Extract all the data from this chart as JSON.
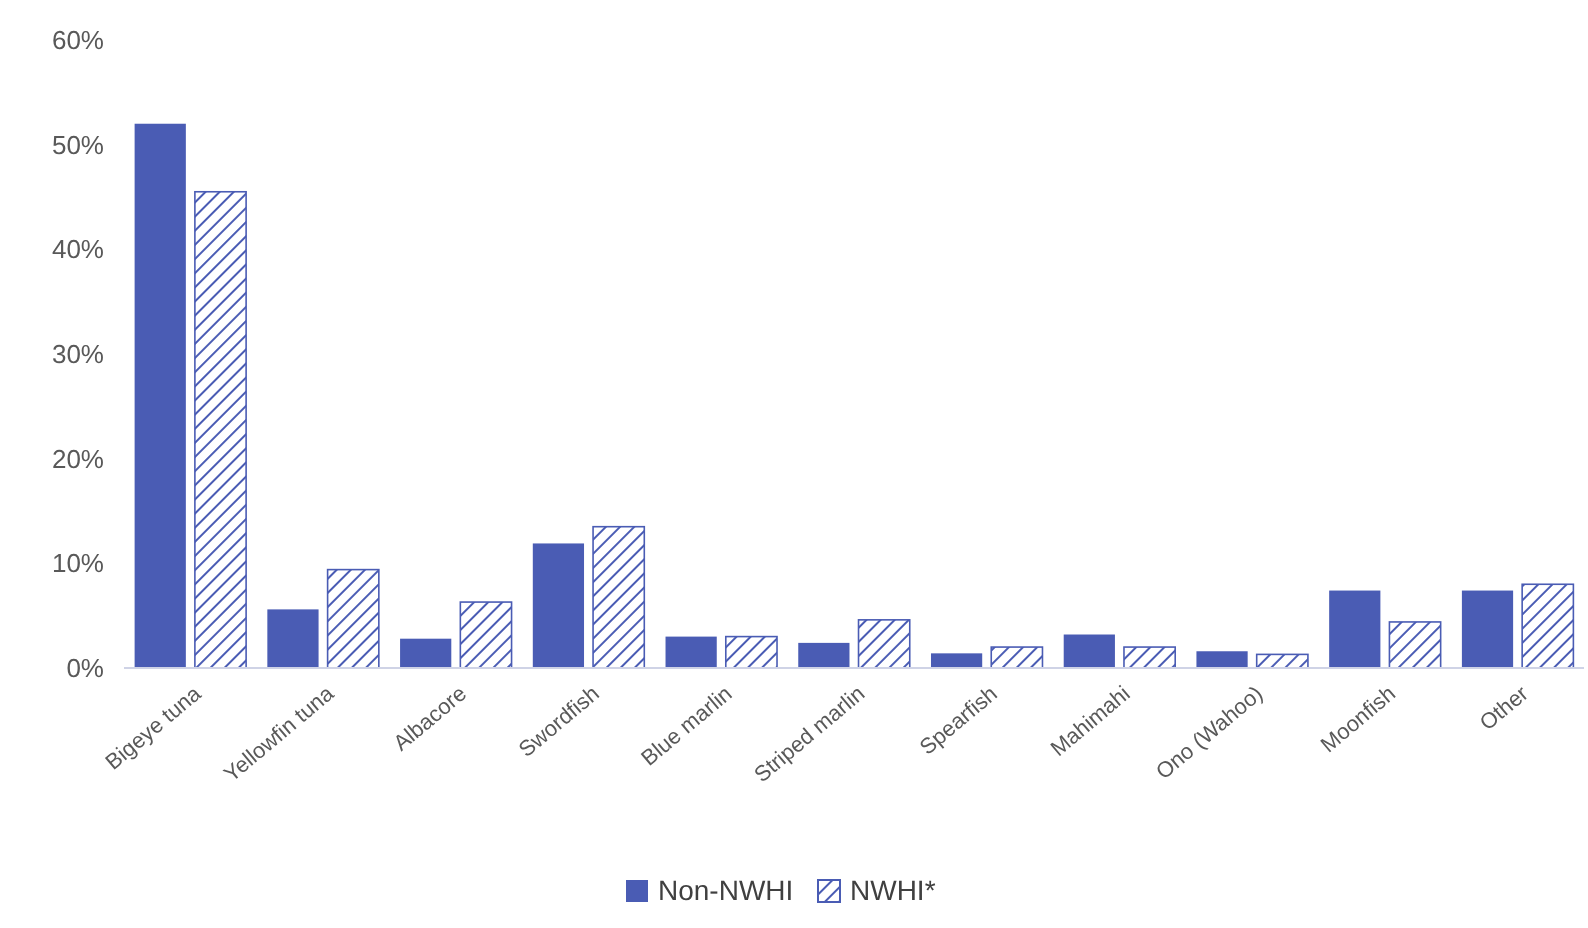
{
  "chart_data": {
    "type": "bar",
    "categories": [
      "Bigeye tuna",
      "Yellowfin tuna",
      "Albacore",
      "Swordfish",
      "Blue marlin",
      "Striped marlin",
      "Spearfish",
      "Mahimahi",
      "Ono (Wahoo)",
      "Moonfish",
      "Other"
    ],
    "series": [
      {
        "name": "Non-NWHI",
        "color": "#4a5cb4",
        "values": [
          52.0,
          5.6,
          2.8,
          11.9,
          3.0,
          2.4,
          1.4,
          3.2,
          1.6,
          7.4,
          7.4
        ]
      },
      {
        "name": "NWHI*",
        "color": "#4a5cb4",
        "values": [
          45.5,
          9.4,
          6.3,
          13.5,
          3.0,
          4.6,
          2.0,
          2.0,
          1.3,
          4.4,
          8.0
        ]
      }
    ],
    "ylim": [
      0,
      60
    ],
    "yticks": [
      {
        "value": 0,
        "label": "0%"
      },
      {
        "value": 10,
        "label": "10%"
      },
      {
        "value": 20,
        "label": "20%"
      },
      {
        "value": 30,
        "label": "30%"
      },
      {
        "value": 40,
        "label": "40%"
      },
      {
        "value": 50,
        "label": "50%"
      },
      {
        "value": 60,
        "label": "60%"
      }
    ],
    "grid": false,
    "legend": "bottom"
  }
}
